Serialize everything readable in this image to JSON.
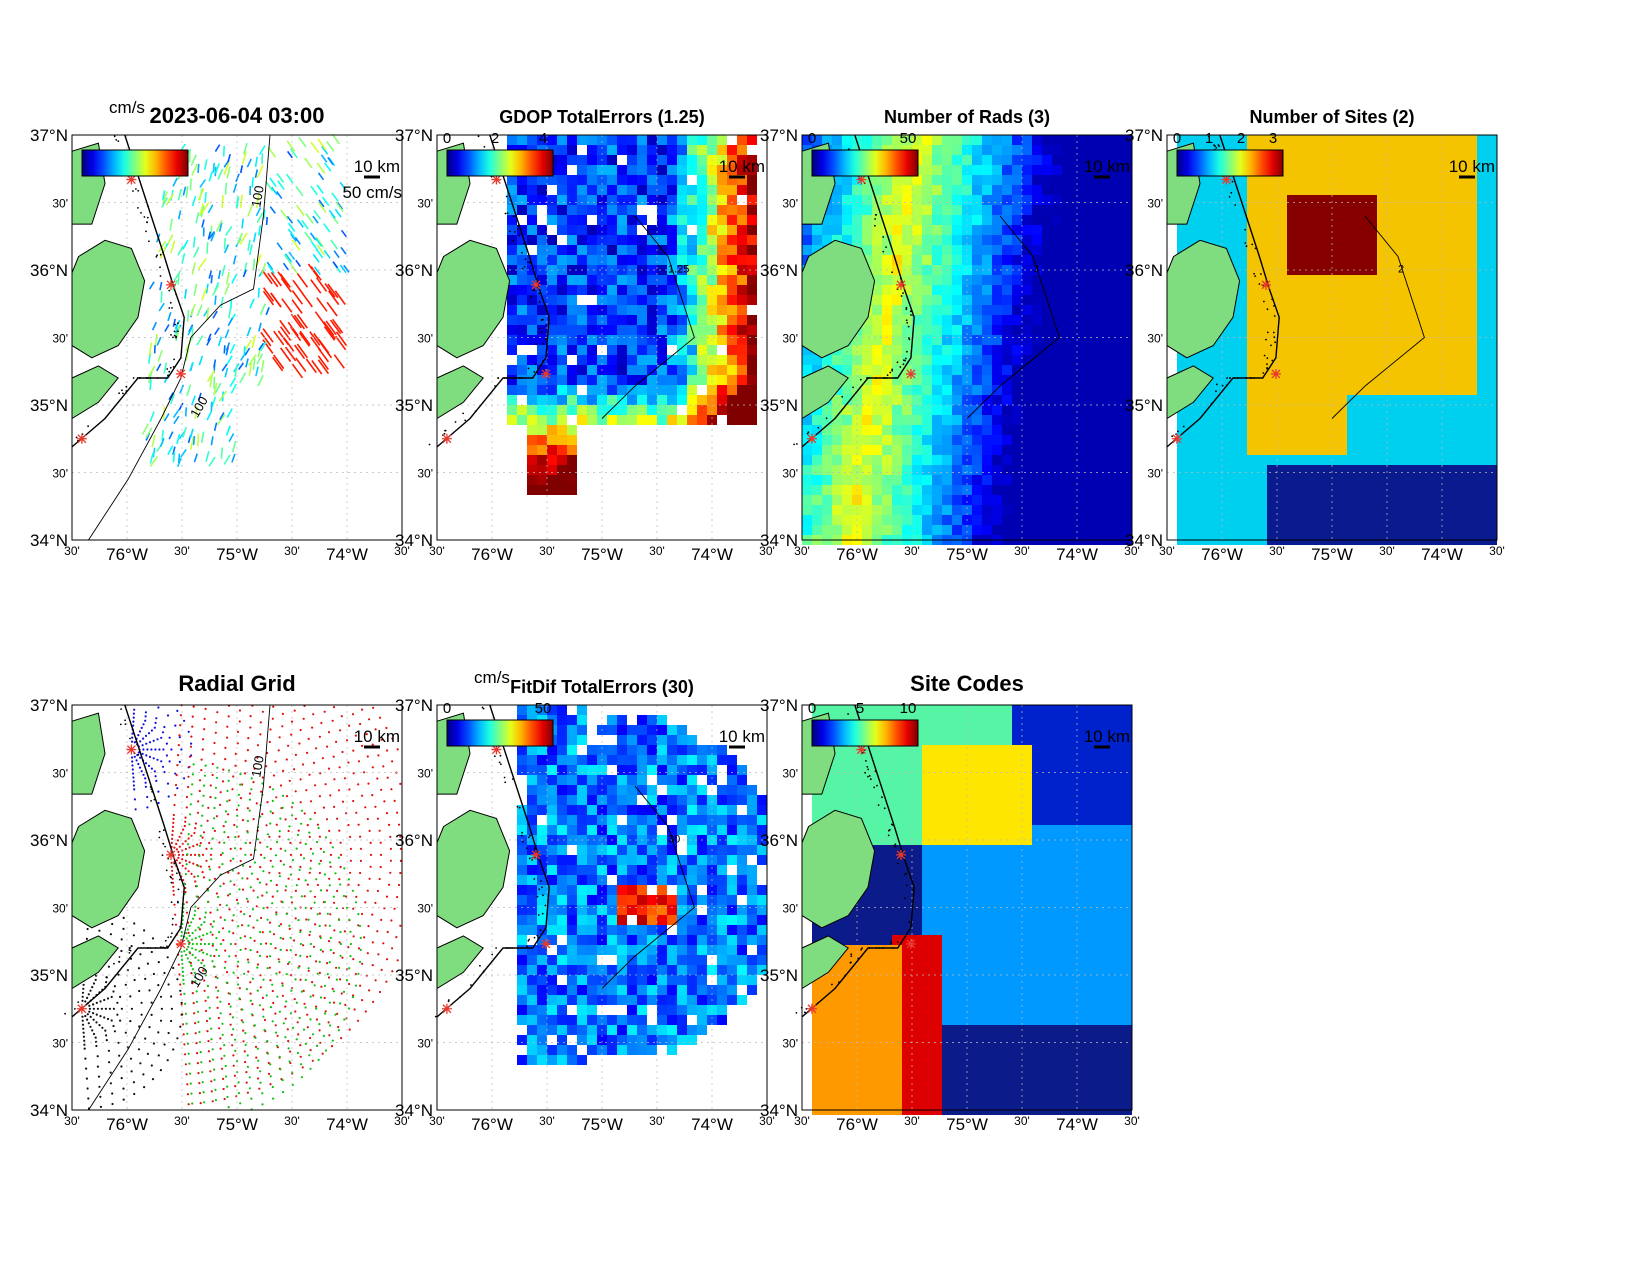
{
  "figure": {
    "panels": [
      {
        "id": "currents",
        "title": "2023-06-04 03:00",
        "colorbar": {
          "unit": "cm/s",
          "ticks": []
        },
        "annotations": {
          "scale_vector": "50 cm/s",
          "scale_bar": "10 km"
        },
        "bathymetry_label": "100"
      },
      {
        "id": "gdop",
        "title": "GDOP TotalErrors (1.25)",
        "colorbar": {
          "unit": "",
          "ticks": [
            "0",
            "2",
            "4"
          ]
        },
        "annotations": {
          "scale_bar": "10 km"
        },
        "contour_label": "1.25"
      },
      {
        "id": "nrads",
        "title": "Number of Rads (3)",
        "colorbar": {
          "unit": "",
          "ticks": [
            "0",
            "50"
          ]
        },
        "annotations": {
          "scale_bar": "10 km"
        },
        "contour_label": "3"
      },
      {
        "id": "nsites",
        "title": "Number of Sites (2)",
        "colorbar": {
          "unit": "",
          "ticks": [
            "0",
            "1",
            "2",
            "3"
          ]
        },
        "annotations": {
          "scale_bar": "10 km"
        },
        "contour_label": "2"
      },
      {
        "id": "radgrid",
        "title": "Radial Grid",
        "colorbar": null,
        "annotations": {
          "scale_bar": "10 km"
        },
        "bathymetry_label": "100"
      },
      {
        "id": "fitdif",
        "title": "FitDif TotalErrors (30)",
        "colorbar": {
          "unit": "cm/s",
          "ticks": [
            "0",
            "50"
          ]
        },
        "annotations": {
          "scale_bar": "10 km"
        },
        "contour_label": "30"
      },
      {
        "id": "sitecodes",
        "title": "Site Codes",
        "colorbar": {
          "unit": "",
          "ticks": [
            "0",
            "5",
            "10"
          ]
        },
        "annotations": {
          "scale_bar": "10 km"
        }
      }
    ],
    "axes": {
      "lat_ticks": [
        "37°N",
        "30'",
        "36°N",
        "30'",
        "35°N",
        "30'",
        "34°N"
      ],
      "lon_ticks": [
        "30'",
        "76°W",
        "30'",
        "75°W",
        "30'",
        "74°W",
        "30'"
      ]
    },
    "colors": {
      "land": "#7fdc7f",
      "coast": "#000000",
      "radar_site": "#e8392c",
      "jet_low": "#00008f",
      "jet_high": "#800000",
      "site_dark_red": "#870000",
      "site_orange": "#f5c400",
      "site_cyan": "#00d0f0",
      "site_navy": "#0a1a8f",
      "grid_blue": "#1010dd",
      "grid_red": "#e01010",
      "grid_green": "#10c010",
      "grid_black": "#111111"
    }
  }
}
